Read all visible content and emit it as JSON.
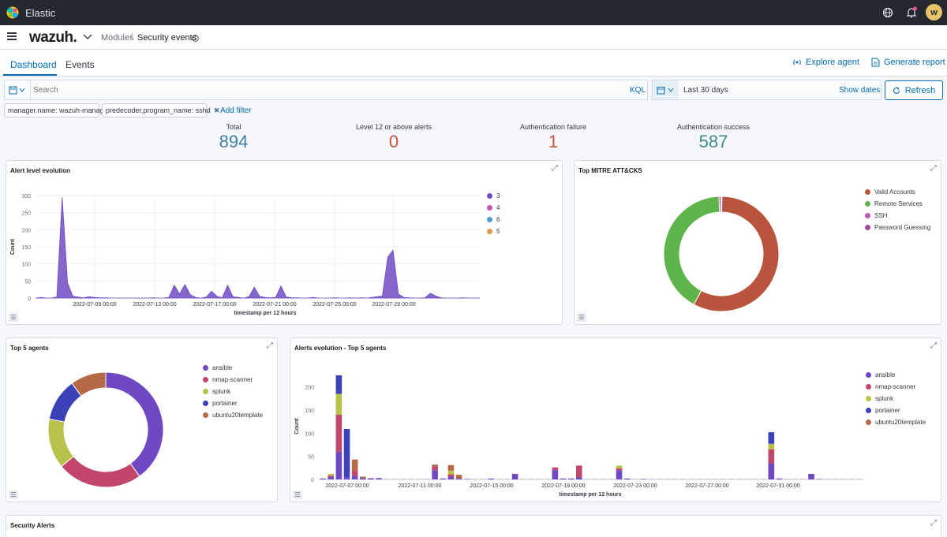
{
  "topbar": {
    "brand": "Elastic",
    "avatar_letter": "w"
  },
  "header": {
    "logo": "wazuh.",
    "breadcrumb_modules": "Modules",
    "breadcrumb_separator": "/",
    "breadcrumb_current": "Security events"
  },
  "tabs": [
    {
      "label": "Dashboard"
    },
    {
      "label": "Events"
    }
  ],
  "actions": {
    "explore_agent": "Explore agent",
    "generate_report": "Generate report"
  },
  "query": {
    "placeholder": "Search",
    "language": "KQL",
    "date_range": "Last 30 days",
    "show_dates": "Show dates",
    "refresh": "Refresh"
  },
  "filters": [
    "manager.name: wazuh-manager",
    "predecoder.program_name: sshd"
  ],
  "add_filter": "+ Add filter",
  "stats": [
    {
      "label": "Total",
      "value": "894",
      "color": "#3f7fa6"
    },
    {
      "label": "Level 12 or above alerts",
      "value": "0",
      "color": "#c9513f"
    },
    {
      "label": "Authentication failure",
      "value": "1",
      "color": "#c9513f"
    },
    {
      "label": "Authentication success",
      "value": "587",
      "color": "#3f8a8c"
    }
  ],
  "panels": {
    "alert_level": "Alert level evolution",
    "mitre": "Top MITRE ATT&CKS",
    "top_agents": "Top 5 agents",
    "agents_evolution": "Alerts evolution - Top 5 agents",
    "security_alerts": "Security Alerts"
  },
  "chart_data": [
    {
      "type": "area",
      "title": "Alert level evolution",
      "xlabel": "timestamp per 12 hours",
      "ylabel": "Count",
      "ylim": [
        0,
        300
      ],
      "yticks": [
        0,
        50,
        100,
        150,
        200,
        250,
        300
      ],
      "x_tick_labels": [
        "2022-07-09 00:00",
        "2022-07-13 00:00",
        "2022-07-17 00:00",
        "2022-07-21 00:00",
        "2022-07-25 00:00",
        "2022-07-29 00:00"
      ],
      "grid": true,
      "legend_position": "right",
      "series": [
        {
          "name": "3",
          "color": "#6f4bc4",
          "values": [
            0,
            2,
            0,
            0,
            3,
            295,
            45,
            5,
            3,
            1,
            4,
            2,
            1,
            1,
            0,
            0,
            0,
            0,
            0,
            0,
            0,
            0,
            1,
            0,
            0,
            2,
            38,
            12,
            40,
            10,
            2,
            0,
            3,
            20,
            5,
            1,
            38,
            4,
            2,
            0,
            4,
            32,
            5,
            2,
            1,
            2,
            35,
            3,
            1,
            1,
            0,
            0,
            2,
            0,
            0,
            0,
            1,
            0,
            0,
            1,
            0,
            1,
            0,
            2,
            4,
            6,
            120,
            140,
            12,
            2,
            1,
            0,
            0,
            1,
            14,
            6,
            1,
            0,
            0,
            0,
            1,
            0,
            0,
            0,
            0
          ]
        },
        {
          "name": "4",
          "color": "#c355b9",
          "values": []
        },
        {
          "name": "6",
          "color": "#4e9bc9",
          "values": []
        },
        {
          "name": "5",
          "color": "#d89b4d",
          "values": []
        }
      ]
    },
    {
      "type": "pie",
      "title": "Top MITRE ATT&CKS",
      "legend_position": "right",
      "labels": [
        "Valid Accounts",
        "Remote Services",
        "SSH",
        "Password Guessing"
      ],
      "values": [
        572,
        410,
        6,
        2
      ],
      "colors": [
        "#b9543e",
        "#5fb54b",
        "#c355b9",
        "#a4479e"
      ]
    },
    {
      "type": "pie",
      "title": "Top 5 agents",
      "legend_position": "right",
      "labels": [
        "ansible",
        "nmap-scanner",
        "splunk",
        "portainer",
        "ubuntu20template"
      ],
      "values": [
        40,
        24,
        14,
        12,
        10
      ],
      "colors": [
        "#7048c4",
        "#c2456c",
        "#b8c24a",
        "#3b42b8",
        "#b56a45"
      ]
    },
    {
      "type": "bar",
      "title": "Alerts evolution - Top 5 agents",
      "xlabel": "timestamp per 12 hours",
      "ylabel": "Count",
      "ylim": [
        0,
        230
      ],
      "yticks": [
        0,
        50,
        100,
        150,
        200
      ],
      "x_tick_labels": [
        "2022-07-07 00:00",
        "2022-07-11 00:00",
        "2022-07-15 00:00",
        "2022-07-19 00:00",
        "2022-07-23 00:00",
        "2022-07-27 00:00",
        "2022-07-31 00:00"
      ],
      "legend_position": "right",
      "stacked": true,
      "series_names": [
        "ansible",
        "nmap-scanner",
        "splunk",
        "portainer",
        "ubuntu20template"
      ],
      "colors": [
        "#7048c4",
        "#c2456c",
        "#b8c24a",
        "#3b42b8",
        "#b56a45"
      ],
      "bars": [
        [
          2,
          0,
          0,
          0,
          0
        ],
        [
          5,
          3,
          4,
          0,
          0
        ],
        [
          60,
          80,
          45,
          40,
          0
        ],
        [
          5,
          0,
          0,
          104,
          0
        ],
        [
          8,
          10,
          0,
          0,
          25
        ],
        [
          3,
          0,
          0,
          0,
          3
        ],
        [
          2,
          0,
          0,
          0,
          1
        ],
        [
          3,
          0,
          0,
          0,
          0
        ],
        [
          0,
          0,
          0,
          0,
          0
        ],
        [
          0,
          0,
          0,
          0,
          0
        ],
        [
          0,
          0,
          0,
          0,
          0
        ],
        [
          0,
          0,
          0,
          0,
          0
        ],
        [
          0,
          0,
          0,
          0,
          0
        ],
        [
          0,
          0,
          0,
          0,
          0
        ],
        [
          20,
          8,
          0,
          0,
          4
        ],
        [
          2,
          0,
          0,
          0,
          0
        ],
        [
          6,
          5,
          8,
          0,
          12
        ],
        [
          2,
          0,
          0,
          0,
          8
        ],
        [
          1,
          0,
          0,
          0,
          0
        ],
        [
          0,
          0,
          0,
          0,
          0
        ],
        [
          0,
          0,
          0,
          0,
          0
        ],
        [
          2,
          0,
          0,
          0,
          0
        ],
        [
          0,
          0,
          0,
          0,
          0
        ],
        [
          0,
          0,
          0,
          0,
          0
        ],
        [
          12,
          0,
          0,
          0,
          0
        ],
        [
          0,
          0,
          0,
          0,
          0
        ],
        [
          0,
          0,
          0,
          0,
          0
        ],
        [
          0,
          0,
          0,
          0,
          0
        ],
        [
          0,
          0,
          0,
          0,
          0
        ],
        [
          20,
          6,
          0,
          0,
          0
        ],
        [
          2,
          0,
          0,
          0,
          0
        ],
        [
          2,
          0,
          0,
          0,
          0
        ],
        [
          5,
          25,
          0,
          0,
          0
        ],
        [
          0,
          0,
          0,
          0,
          0
        ],
        [
          0,
          0,
          0,
          0,
          0
        ],
        [
          0,
          0,
          0,
          0,
          0
        ],
        [
          0,
          0,
          0,
          0,
          0
        ],
        [
          20,
          4,
          6,
          0,
          0
        ],
        [
          2,
          0,
          0,
          0,
          0
        ],
        [
          0,
          0,
          0,
          0,
          0
        ],
        [
          1,
          0,
          0,
          0,
          0
        ],
        [
          0,
          0,
          0,
          0,
          0
        ],
        [
          0,
          0,
          0,
          0,
          0
        ],
        [
          0,
          0,
          0,
          0,
          0
        ],
        [
          0,
          0,
          0,
          0,
          0
        ],
        [
          0,
          0,
          0,
          0,
          0
        ],
        [
          0,
          0,
          0,
          0,
          0
        ],
        [
          0,
          0,
          0,
          0,
          0
        ],
        [
          0,
          0,
          0,
          0,
          0
        ],
        [
          0,
          0,
          0,
          0,
          0
        ],
        [
          0,
          0,
          0,
          0,
          0
        ],
        [
          0,
          0,
          0,
          0,
          0
        ],
        [
          0,
          0,
          0,
          0,
          0
        ],
        [
          0,
          0,
          0,
          0,
          0
        ],
        [
          0,
          0,
          0,
          0,
          0
        ],
        [
          0,
          0,
          0,
          0,
          0
        ],
        [
          35,
          30,
          12,
          25,
          0
        ],
        [
          2,
          0,
          0,
          0,
          0
        ],
        [
          0,
          0,
          0,
          0,
          0
        ],
        [
          0,
          0,
          0,
          0,
          0
        ],
        [
          0,
          0,
          0,
          0,
          0
        ],
        [
          12,
          0,
          0,
          0,
          0
        ],
        [
          1,
          0,
          0,
          0,
          0
        ],
        [
          0,
          0,
          0,
          0,
          0
        ],
        [
          0,
          0,
          0,
          0,
          0
        ],
        [
          0,
          0,
          0,
          0,
          0
        ],
        [
          0,
          0,
          0,
          0,
          0
        ],
        [
          0,
          0,
          0,
          0,
          0
        ]
      ]
    }
  ]
}
